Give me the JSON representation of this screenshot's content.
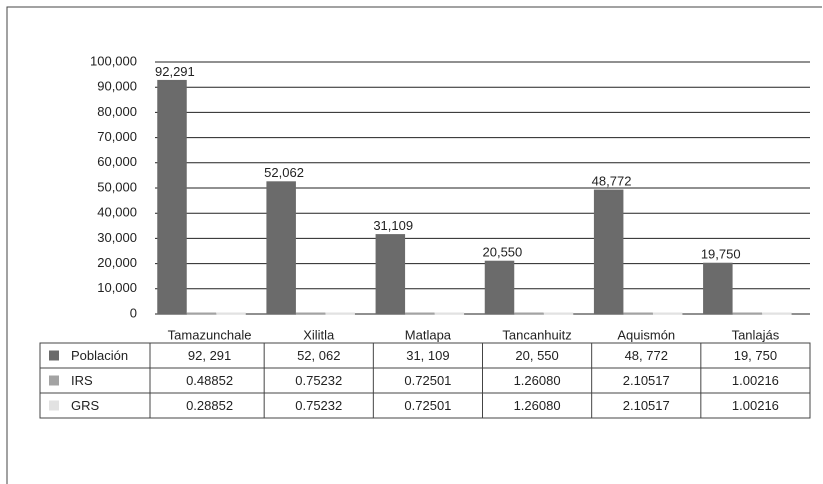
{
  "chart_data": {
    "type": "bar",
    "categories": [
      "Tamazunchale",
      "Xilitla",
      "Matlapa",
      "Tancanhuitz",
      "Aquismón",
      "Tanlajás"
    ],
    "series": [
      {
        "name": "Población",
        "color": "#6b6b6b",
        "values": [
          92291,
          52062,
          31109,
          20550,
          48772,
          19750
        ],
        "value_labels": [
          "92,291",
          "52,062",
          "31,109",
          "20,550",
          "48,772",
          "19,750"
        ],
        "table_labels": [
          "92, 291",
          "52, 062",
          "31, 109",
          "20, 550",
          "48, 772",
          "19, 750"
        ]
      },
      {
        "name": "IRS",
        "color": "#a3a3a3",
        "values": [
          0.48852,
          0.75232,
          0.72501,
          1.2608,
          2.10517,
          1.00216
        ],
        "table_labels": [
          "0.48852",
          "0.75232",
          "0.72501",
          "1.26080",
          "2.10517",
          "1.00216"
        ]
      },
      {
        "name": "GRS",
        "color": "#e2e2e2",
        "values": [
          0.28852,
          0.75232,
          0.72501,
          1.2608,
          2.10517,
          1.00216
        ],
        "table_labels": [
          "0.28852",
          "0.75232",
          "0.72501",
          "1.26080",
          "2.10517",
          "1.00216"
        ]
      }
    ],
    "ylim": [
      0,
      100000
    ],
    "yticks": [
      0,
      {
        "value": 10000,
        "label": "10,000"
      },
      {
        "value": 20000,
        "label": "20,000"
      },
      {
        "value": 30000,
        "label": "30,000"
      },
      {
        "value": 40000,
        "label": "40,000"
      },
      {
        "value": 50000,
        "label": "50,000"
      },
      {
        "value": 60000,
        "label": "60,000"
      },
      {
        "value": 70000,
        "label": "70,000"
      },
      {
        "value": 80000,
        "label": "80,000"
      },
      {
        "value": 90000,
        "label": "90,000"
      },
      {
        "value": 100000,
        "label": "100,000"
      }
    ],
    "grid": true
  }
}
